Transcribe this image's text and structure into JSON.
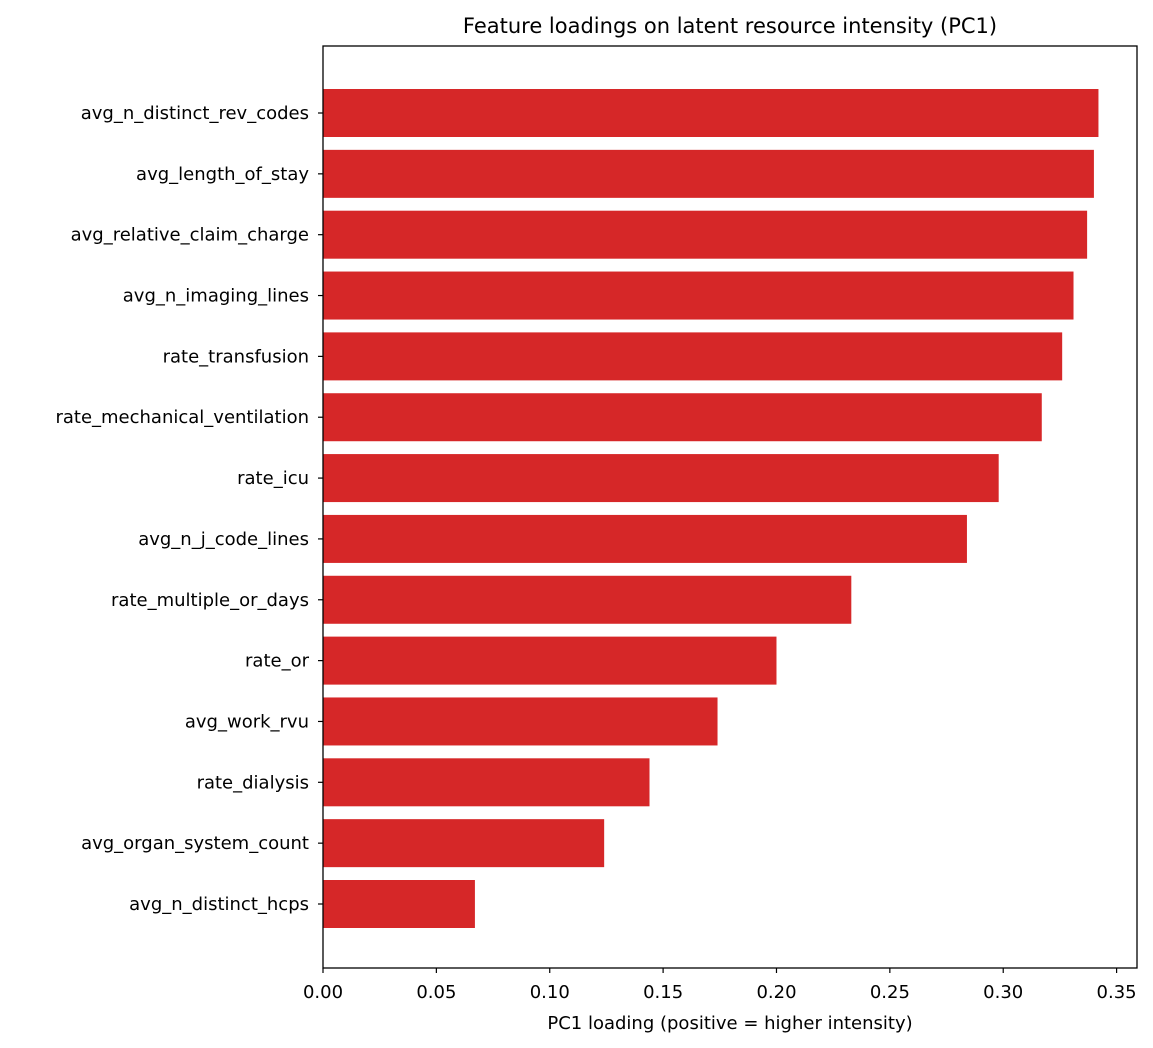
{
  "chart_data": {
    "type": "bar",
    "orientation": "horizontal",
    "title": "Feature loadings on latent resource intensity (PC1)",
    "xlabel": "PC1 loading (positive = higher intensity)",
    "ylabel": "",
    "xlim": [
      0,
      0.359
    ],
    "xticks": [
      "0.00",
      "0.05",
      "0.10",
      "0.15",
      "0.20",
      "0.25",
      "0.30",
      "0.35"
    ],
    "grid": false,
    "bar_color": "#d62728",
    "categories": [
      "avg_n_distinct_rev_codes",
      "avg_length_of_stay",
      "avg_relative_claim_charge",
      "avg_n_imaging_lines",
      "rate_transfusion",
      "rate_mechanical_ventilation",
      "rate_icu",
      "avg_n_j_code_lines",
      "rate_multiple_or_days",
      "rate_or",
      "avg_work_rvu",
      "rate_dialysis",
      "avg_organ_system_count",
      "avg_n_distinct_hcps"
    ],
    "values": [
      0.342,
      0.34,
      0.337,
      0.331,
      0.326,
      0.317,
      0.298,
      0.284,
      0.233,
      0.2,
      0.174,
      0.144,
      0.124,
      0.067
    ]
  }
}
